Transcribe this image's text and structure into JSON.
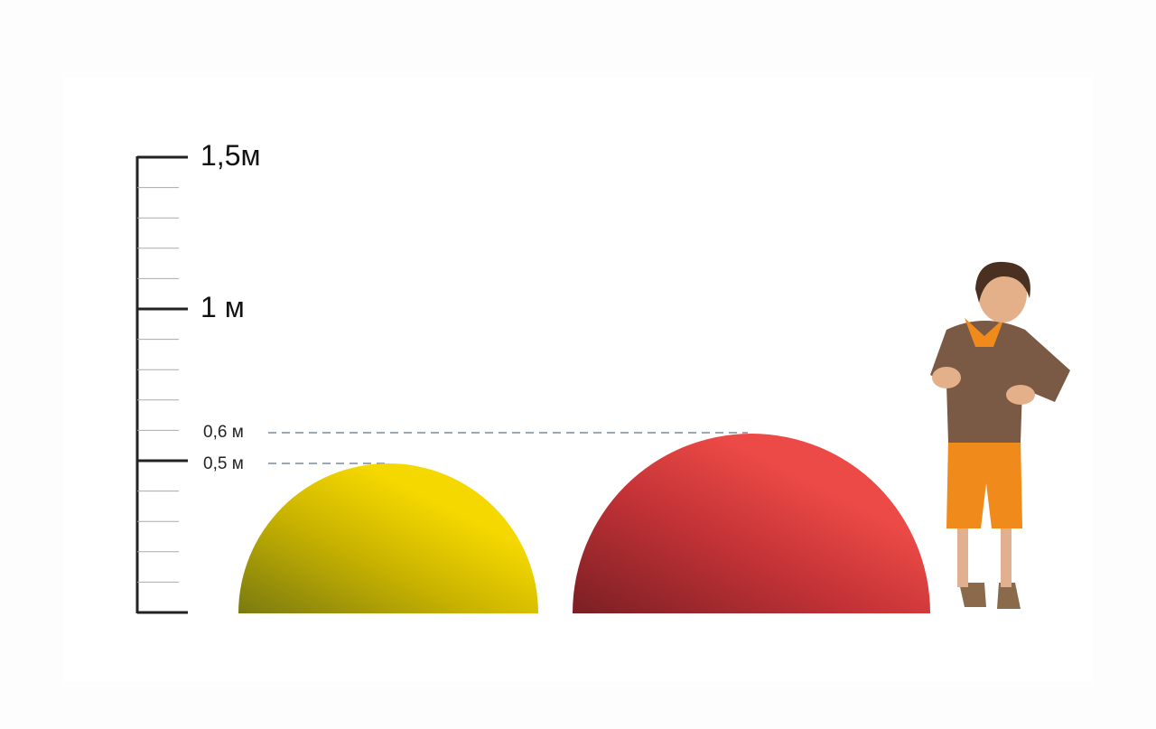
{
  "scale": {
    "unit": "м",
    "labels": {
      "l150": "1,5м",
      "l100": "1 м",
      "l060": "0,6 м",
      "l050": "0,5 м"
    },
    "range_m": [
      0,
      1.5
    ],
    "minor_step_m": 0.1
  },
  "objects": [
    {
      "name": "yellow-half-sphere",
      "height_m": 0.5,
      "color": "#f2d100"
    },
    {
      "name": "red-half-sphere",
      "height_m": 0.6,
      "color": "#e8403e"
    }
  ],
  "colors": {
    "axis": "#222222",
    "minor_tick": "#aaaaaa",
    "dashed": "#7a8a99"
  }
}
